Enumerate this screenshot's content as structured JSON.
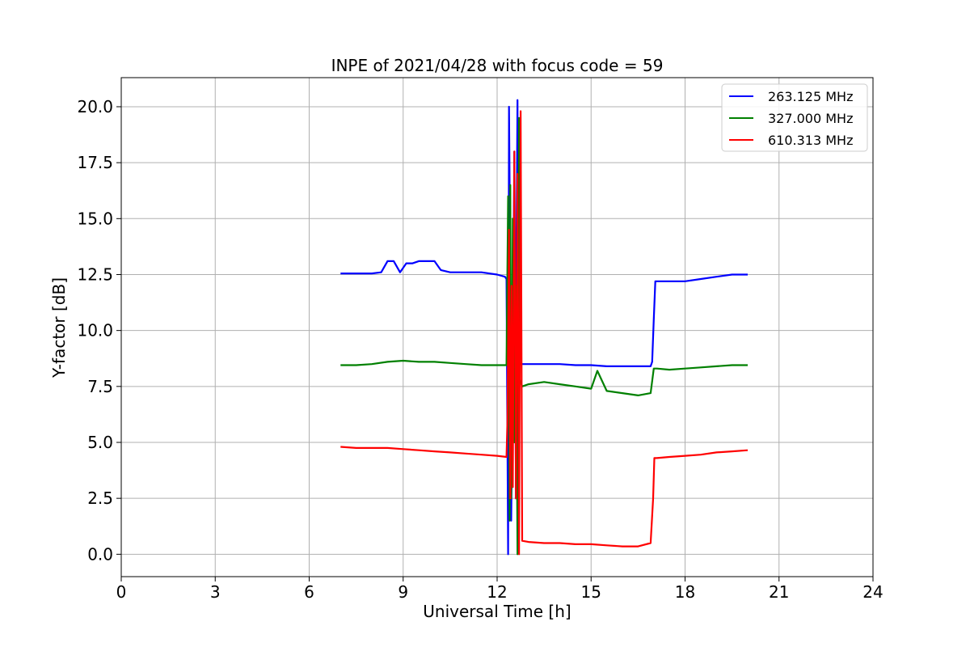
{
  "chart_data": {
    "type": "line",
    "title": "INPE of 2021/04/28 with focus code = 59",
    "xlabel": "Universal Time [h]",
    "ylabel": "Y-factor [dB]",
    "xlim": [
      0,
      24
    ],
    "ylim": [
      -1,
      21.3
    ],
    "x_ticks": [
      0,
      3,
      6,
      9,
      12,
      15,
      18,
      21,
      24
    ],
    "y_ticks": [
      0.0,
      2.5,
      5.0,
      7.5,
      10.0,
      12.5,
      15.0,
      17.5,
      20.0
    ],
    "x_tick_labels": [
      "0",
      "3",
      "6",
      "9",
      "12",
      "15",
      "18",
      "21",
      "24"
    ],
    "y_tick_labels": [
      "0.0",
      "2.5",
      "5.0",
      "7.5",
      "10.0",
      "12.5",
      "15.0",
      "17.5",
      "20.0"
    ],
    "grid": true,
    "legend_position": "top-right",
    "series": [
      {
        "name": "263.125 MHz",
        "color": "#0000ff",
        "x": [
          7.0,
          7.5,
          8.0,
          8.3,
          8.5,
          8.7,
          8.9,
          9.1,
          9.3,
          9.5,
          10.0,
          10.2,
          10.5,
          11.0,
          11.5,
          12.0,
          12.25,
          12.3,
          12.35,
          12.38,
          12.42,
          12.45,
          12.5,
          12.55,
          12.6,
          12.62,
          12.65,
          12.68,
          12.72,
          12.75,
          12.8,
          13.0,
          13.5,
          14.0,
          14.5,
          15.0,
          15.5,
          16.0,
          16.5,
          16.9,
          16.95,
          17.0,
          17.05,
          17.2,
          17.5,
          18.0,
          18.5,
          19.0,
          19.5,
          20.0
        ],
        "y": [
          12.55,
          12.55,
          12.55,
          12.6,
          13.1,
          13.1,
          12.6,
          13.0,
          13.0,
          13.1,
          13.1,
          12.7,
          12.6,
          12.6,
          12.6,
          12.5,
          12.4,
          12.3,
          0.0,
          20.0,
          12.5,
          1.5,
          8.5,
          18.0,
          2.5,
          14.0,
          20.3,
          8.5,
          8.6,
          8.5,
          8.5,
          8.5,
          8.5,
          8.5,
          8.45,
          8.45,
          8.4,
          8.4,
          8.4,
          8.4,
          8.6,
          10.5,
          12.2,
          12.2,
          12.2,
          12.2,
          12.3,
          12.4,
          12.5,
          12.5
        ]
      },
      {
        "name": "327.000 MHz",
        "color": "#008000",
        "x": [
          7.0,
          7.5,
          8.0,
          8.5,
          9.0,
          9.5,
          10.0,
          10.5,
          11.0,
          11.5,
          12.0,
          12.3,
          12.35,
          12.4,
          12.42,
          12.45,
          12.5,
          12.55,
          12.6,
          12.65,
          12.7,
          12.72,
          12.8,
          13.0,
          13.5,
          14.0,
          14.5,
          15.0,
          15.2,
          15.5,
          16.0,
          16.5,
          16.9,
          17.0,
          17.1,
          17.5,
          18.0,
          18.5,
          19.0,
          19.5,
          20.0
        ],
        "y": [
          8.45,
          8.45,
          8.5,
          8.6,
          8.65,
          8.6,
          8.6,
          8.55,
          8.5,
          8.45,
          8.45,
          8.45,
          16.0,
          1.5,
          16.5,
          2.5,
          15.0,
          5.0,
          12.0,
          0.0,
          19.5,
          7.8,
          7.5,
          7.6,
          7.7,
          7.6,
          7.5,
          7.4,
          8.2,
          7.3,
          7.2,
          7.1,
          7.2,
          8.3,
          8.3,
          8.25,
          8.3,
          8.35,
          8.4,
          8.45,
          8.45
        ]
      },
      {
        "name": "610.313 MHz",
        "color": "#ff0000",
        "x": [
          7.0,
          7.5,
          8.0,
          8.5,
          9.0,
          9.5,
          10.0,
          10.5,
          11.0,
          11.5,
          12.0,
          12.3,
          12.33,
          12.38,
          12.42,
          12.46,
          12.5,
          12.55,
          12.6,
          12.65,
          12.7,
          12.75,
          12.8,
          13.0,
          13.5,
          14.0,
          14.5,
          15.0,
          15.5,
          16.0,
          16.5,
          16.9,
          16.98,
          17.02,
          17.1,
          17.5,
          18.0,
          18.5,
          19.0,
          19.5,
          20.0
        ],
        "y": [
          4.8,
          4.75,
          4.75,
          4.75,
          4.7,
          4.65,
          4.6,
          4.55,
          4.5,
          4.45,
          4.4,
          4.35,
          6.0,
          14.5,
          2.5,
          12.0,
          3.0,
          18.0,
          2.5,
          17.0,
          0.0,
          19.8,
          0.6,
          0.55,
          0.5,
          0.5,
          0.45,
          0.45,
          0.4,
          0.35,
          0.35,
          0.5,
          2.5,
          4.3,
          4.3,
          4.35,
          4.4,
          4.45,
          4.55,
          4.6,
          4.65
        ]
      }
    ]
  }
}
